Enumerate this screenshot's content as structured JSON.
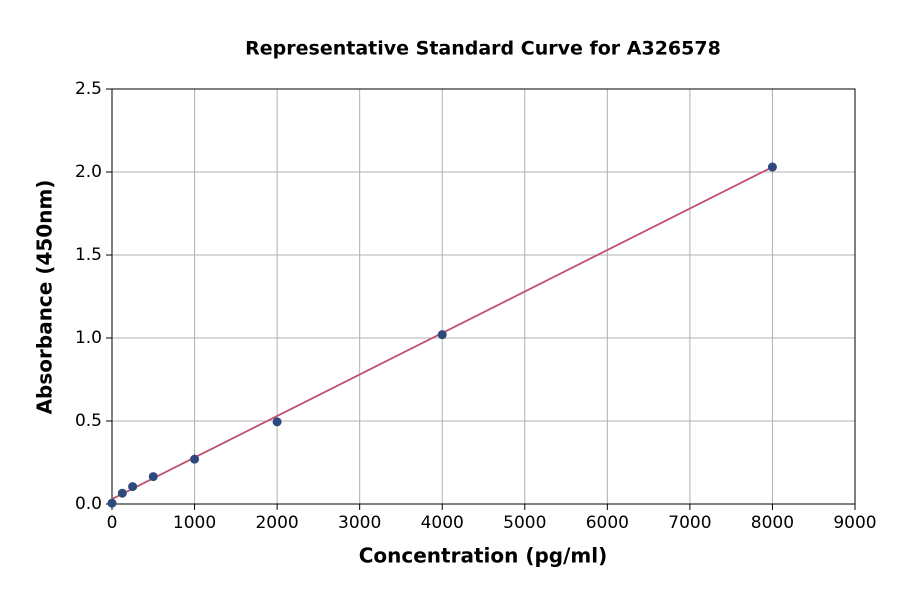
{
  "chart_data": {
    "type": "scatter",
    "title": "Representative Standard Curve for A326578",
    "x_label": "Concentration (pg/ml)",
    "y_label": "Absorbance (450nm)",
    "xlim": [
      0,
      9000
    ],
    "ylim": [
      0,
      2.5
    ],
    "xticks": [
      0,
      1000,
      2000,
      3000,
      4000,
      5000,
      6000,
      7000,
      8000,
      9000
    ],
    "yticks": [
      {
        "value": 0,
        "label": "0.0"
      },
      0.5,
      {
        "value": 1,
        "label": "1.0"
      },
      1.5,
      {
        "value": 2,
        "label": "2.0"
      },
      2.5
    ],
    "grid": true,
    "series": [
      {
        "color": "#2e4a7d",
        "x": [
          0,
          125,
          250,
          500,
          1000,
          2000,
          4000,
          8000
        ],
        "values": [
          0.005,
          0.065,
          0.105,
          0.165,
          0.27,
          0.495,
          1.02,
          2.03
        ]
      },
      {
        "type": "line",
        "color": "#c0506e",
        "x": [
          0,
          8000
        ],
        "values": [
          0.03,
          2.03
        ]
      }
    ]
  }
}
